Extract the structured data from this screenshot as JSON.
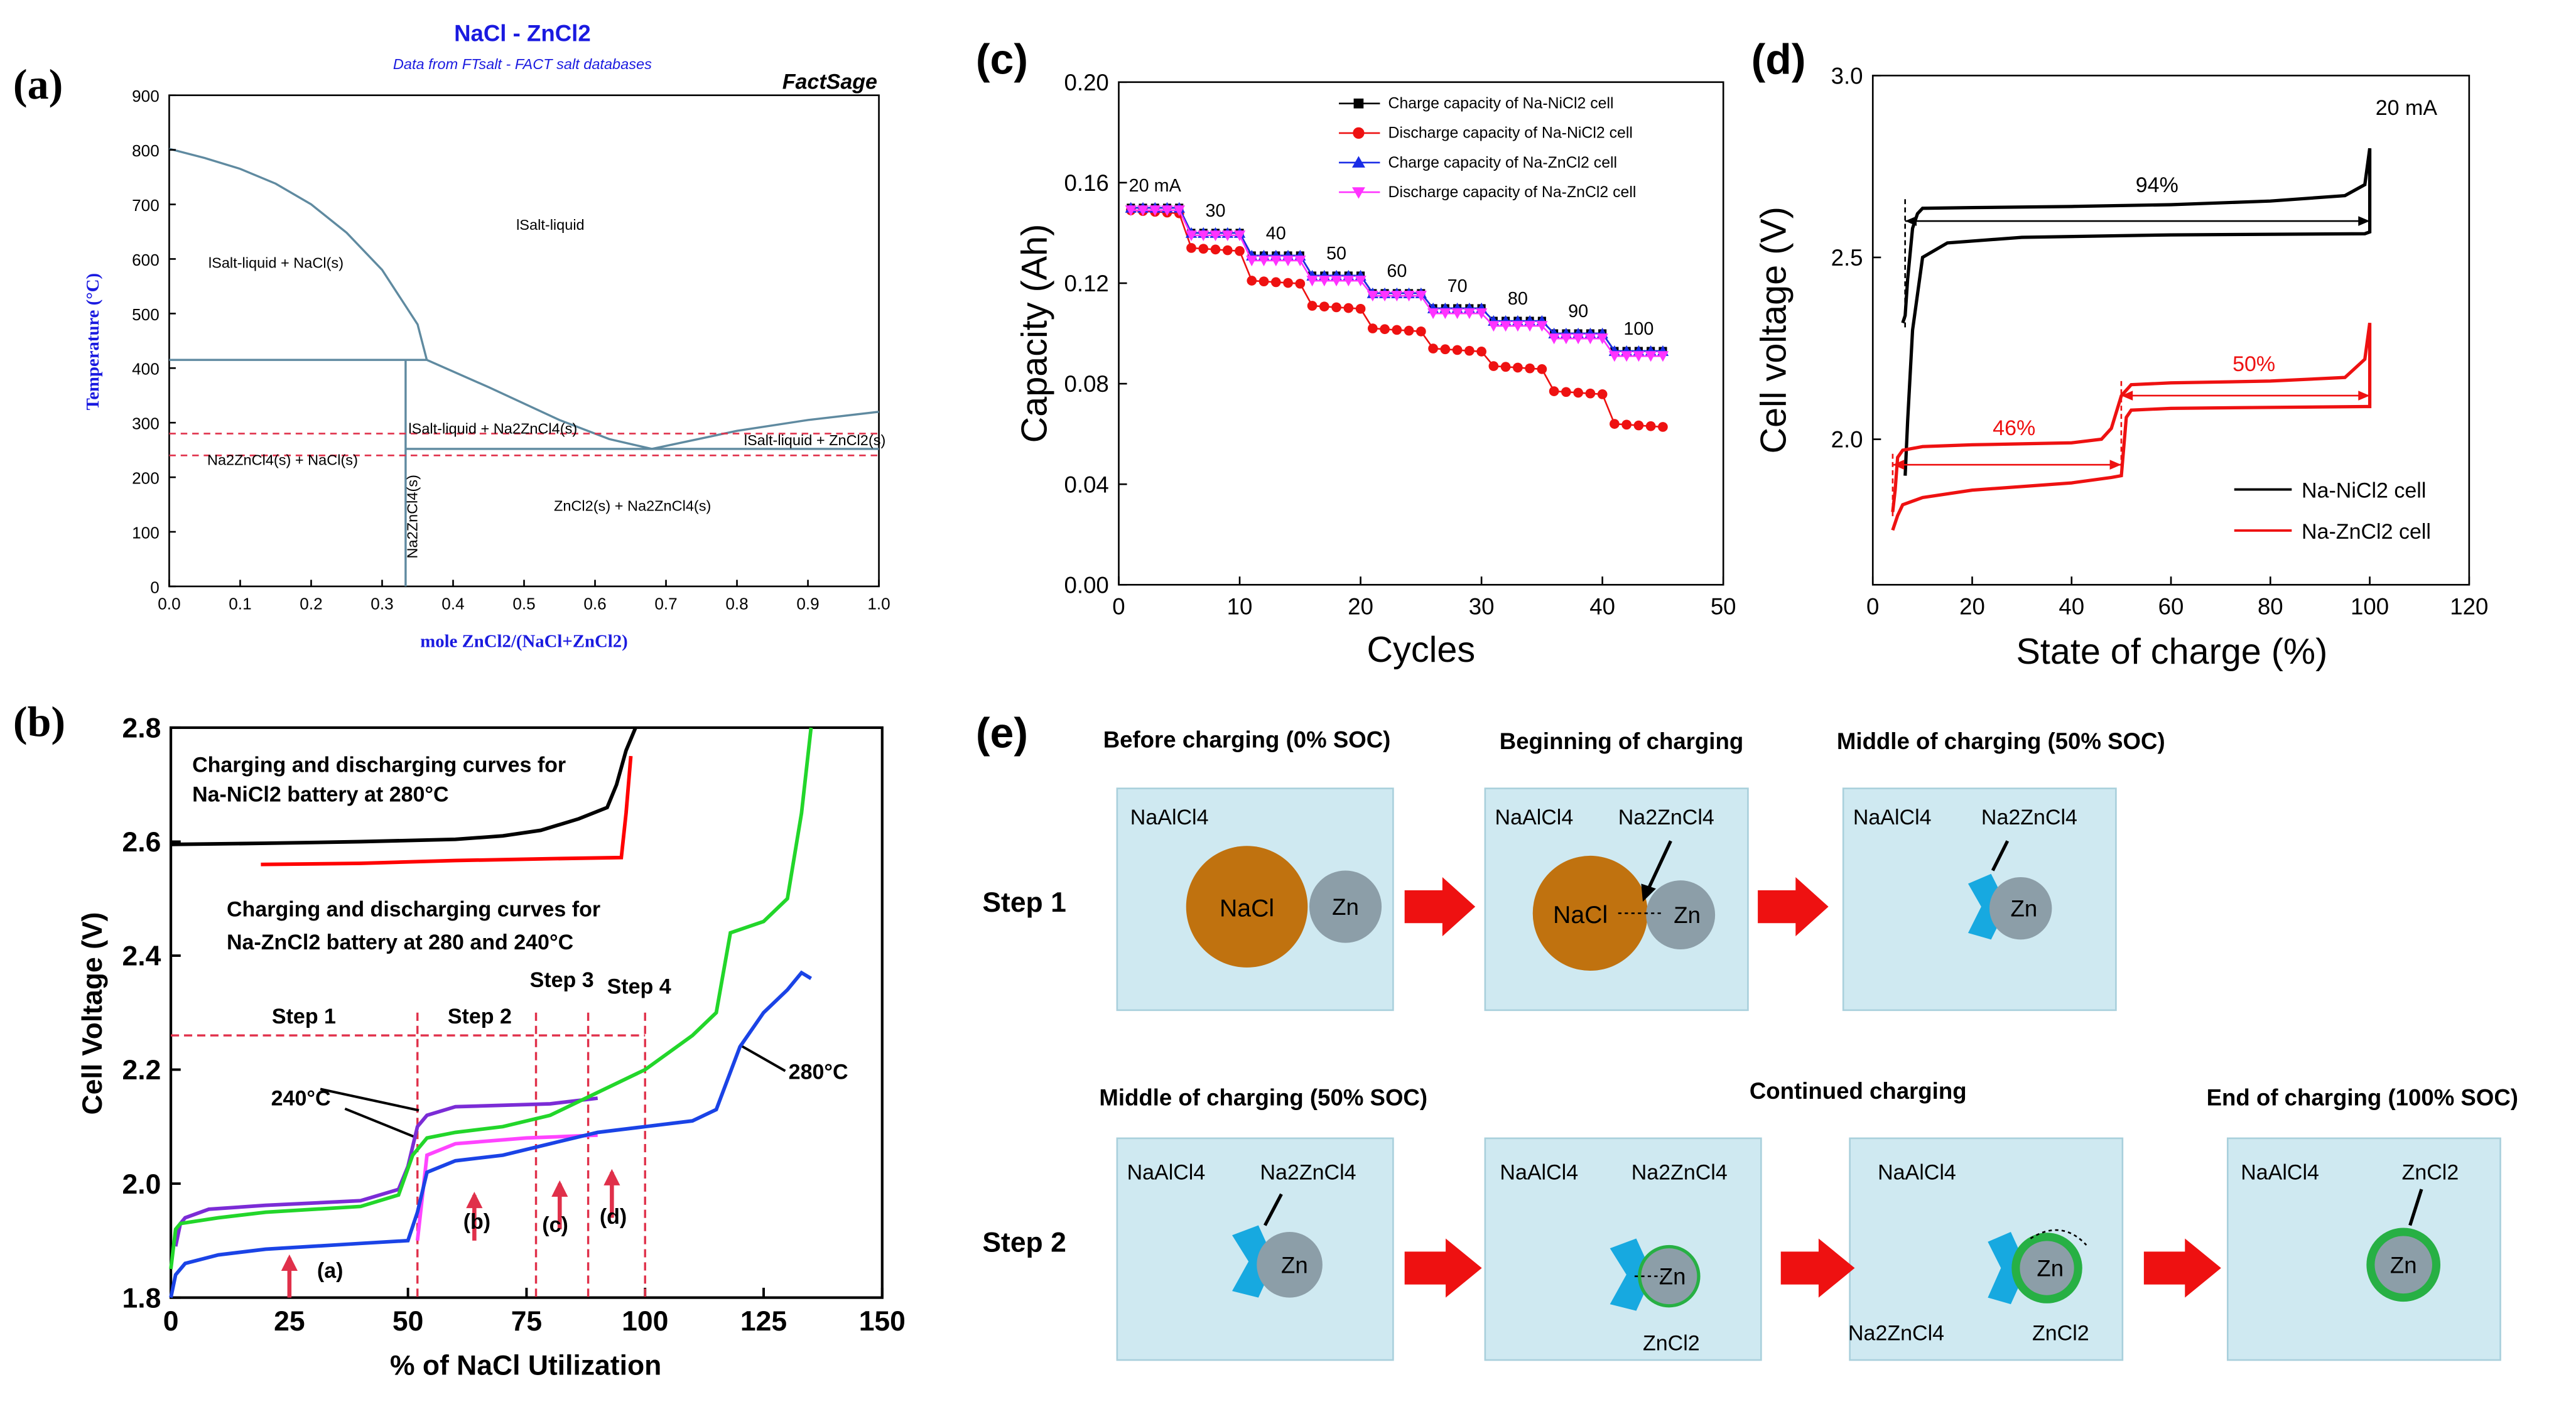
{
  "panel_labels": [
    "(a)",
    "(b)",
    "(c)",
    "(d)",
    "(e)"
  ],
  "colors": {
    "phase_line": "#5f8aa0",
    "dashed_red": "#e0304a",
    "title_blue": "#1a1ae0",
    "nacl": "#c0720f",
    "zn": "#8c9ea8",
    "nazn": "#17a9e0",
    "zncl2_ring": "#27b044",
    "arrow": "#ee1111",
    "box": "#cfe9f1"
  },
  "chart_data": [
    {
      "id": "a",
      "type": "line",
      "title": "NaCl - ZnCl2",
      "subtitle": "Data from FTsalt - FACT salt databases",
      "brand": "FactSage",
      "xlabel": "mole ZnCl2/(NaCl+ZnCl2)",
      "ylabel": "Temperature (°C)",
      "xlim": [
        0,
        1
      ],
      "ylim": [
        0,
        900
      ],
      "xticks": [
        "0.0",
        "0.1",
        "0.2",
        "0.3",
        "0.4",
        "0.5",
        "0.6",
        "0.7",
        "0.8",
        "0.9",
        "1.0"
      ],
      "yticks": [
        "0",
        "100",
        "200",
        "300",
        "400",
        "500",
        "600",
        "700",
        "800",
        "900"
      ],
      "series": [
        {
          "name": "liquidus NaCl",
          "x": [
            0,
            0.05,
            0.1,
            0.15,
            0.2,
            0.25,
            0.3,
            0.35,
            0.363
          ],
          "y": [
            802,
            785,
            765,
            738,
            700,
            648,
            580,
            480,
            415
          ]
        },
        {
          "name": "liquidus Na2ZnCl4",
          "x": [
            0.363,
            0.45,
            0.55,
            0.62,
            0.68
          ],
          "y": [
            415,
            365,
            305,
            270,
            252
          ]
        },
        {
          "name": "liquidus ZnCl2",
          "x": [
            0.68,
            0.8,
            0.9,
            1.0
          ],
          "y": [
            252,
            285,
            305,
            320
          ]
        },
        {
          "name": "peritectic",
          "x": [
            0,
            0.363
          ],
          "y": [
            415,
            415
          ]
        },
        {
          "name": "eutectic",
          "x": [
            0.333,
            1.0
          ],
          "y": [
            252,
            252
          ]
        },
        {
          "name": "compound",
          "x": [
            0.333,
            0.333
          ],
          "y": [
            0,
            415
          ]
        }
      ],
      "reference_lines": [
        280,
        240
      ],
      "regions": {
        "liquid": "lSalt-liquid",
        "liq_nacl": "lSalt-liquid + NaCl(s)",
        "liq_na2zncl4": "lSalt-liquid + Na2ZnCl4(s)",
        "liq_zncl2": "lSalt-liquid + ZnCl2(s)",
        "na2zncl4_nacl": "Na2ZnCl4(s) + NaCl(s)",
        "zncl2_na2zncl4": "ZnCl2(s) + Na2ZnCl4(s)",
        "compound": "Na2ZnCl4(s)"
      }
    },
    {
      "id": "b",
      "type": "line",
      "xlabel": "% of NaCl Utilization",
      "ylabel": "Cell Voltage (V)",
      "xlim": [
        0,
        150
      ],
      "ylim": [
        1.8,
        2.8
      ],
      "xticks": [
        "0",
        "25",
        "50",
        "75",
        "100",
        "125",
        "150"
      ],
      "yticks": [
        "1.8",
        "2.0",
        "2.2",
        "2.4",
        "2.6",
        "2.8"
      ],
      "annotations": {
        "nicl_text_1": "Charging and discharging curves for",
        "nicl_text_2": "Na-NiCl2 battery at 280°C",
        "zncl_text_1": "Charging and discharging curves for",
        "zncl_text_2": "Na-ZnCl2 battery at 280 and 240°C",
        "step1": "Step 1",
        "step2": "Step 2",
        "step3": "Step 3",
        "step4": "Step 4",
        "t240": "240°C",
        "t280": "280°C",
        "ma": "(a)",
        "mb": "(b)",
        "mc": "(c)",
        "md": "(d)"
      },
      "series": [
        {
          "name": "Na-NiCl2 charge 280C",
          "color": "#000000",
          "x": [
            0,
            20,
            40,
            60,
            70,
            78,
            86,
            92,
            94,
            96,
            98
          ],
          "y": [
            2.595,
            2.597,
            2.6,
            2.604,
            2.61,
            2.62,
            2.64,
            2.66,
            2.7,
            2.76,
            2.8
          ]
        },
        {
          "name": "Na-NiCl2 discharge 280C",
          "color": "#ff0000",
          "x": [
            19,
            40,
            60,
            80,
            95,
            96,
            97
          ],
          "y": [
            2.56,
            2.562,
            2.567,
            2.57,
            2.572,
            2.65,
            2.75
          ]
        },
        {
          "name": "Na-ZnCl2 charge 240C",
          "color": "#7b2cd6",
          "x": [
            1,
            2,
            3,
            8,
            20,
            40,
            48,
            50,
            52,
            54,
            60,
            80,
            90
          ],
          "y": [
            1.89,
            1.93,
            1.94,
            1.955,
            1.962,
            1.97,
            1.99,
            2.03,
            2.1,
            2.12,
            2.135,
            2.14,
            2.15
          ]
        },
        {
          "name": "Na-ZnCl2 discharge 240C",
          "color": "#ff44ff",
          "x": [
            52,
            54,
            60,
            75,
            90
          ],
          "y": [
            1.9,
            2.05,
            2.07,
            2.08,
            2.085
          ]
        },
        {
          "name": "Na-ZnCl2 charge 280C green",
          "color": "#22d62a",
          "x": [
            0,
            1,
            2,
            10,
            20,
            40,
            48,
            51,
            54,
            60,
            70,
            80,
            90,
            100,
            110,
            115,
            118,
            125,
            130,
            133,
            135
          ],
          "y": [
            1.85,
            1.92,
            1.93,
            1.94,
            1.95,
            1.96,
            1.98,
            2.05,
            2.08,
            2.09,
            2.1,
            2.12,
            2.16,
            2.2,
            2.26,
            2.3,
            2.44,
            2.46,
            2.5,
            2.65,
            2.8
          ]
        },
        {
          "name": "Na-ZnCl2 charge 280C blue",
          "color": "#1a43e6",
          "x": [
            0,
            1,
            3,
            10,
            20,
            40,
            50,
            52,
            54,
            60,
            70,
            80,
            90,
            100,
            110,
            115,
            120,
            125,
            130,
            133,
            135
          ],
          "y": [
            1.8,
            1.84,
            1.86,
            1.875,
            1.885,
            1.895,
            1.9,
            1.95,
            2.02,
            2.04,
            2.05,
            2.07,
            2.09,
            2.1,
            2.11,
            2.13,
            2.24,
            2.3,
            2.34,
            2.37,
            2.36
          ]
        }
      ]
    },
    {
      "id": "c",
      "type": "scatter",
      "xlabel": "Cycles",
      "ylabel": "Capacity (Ah)",
      "xlim": [
        0,
        50
      ],
      "ylim": [
        0,
        0.2
      ],
      "xticks": [
        "0",
        "10",
        "20",
        "30",
        "40",
        "50"
      ],
      "yticks": [
        "0.00",
        "0.04",
        "0.08",
        "0.12",
        "0.16",
        "0.20"
      ],
      "rate_labels": [
        "20 mA",
        "30",
        "40",
        "50",
        "60",
        "70",
        "80",
        "90",
        "100"
      ],
      "series": [
        {
          "name": "Charge capacity of Na-NiCl2 cell",
          "color": "#000000",
          "marker": "square",
          "values": [
            0.15,
            0.14,
            0.131,
            0.123,
            0.116,
            0.11,
            0.105,
            0.1,
            0.093
          ]
        },
        {
          "name": "Discharge capacity of Na-NiCl2 cell",
          "color": "#ee1111",
          "marker": "circle",
          "values": [
            0.149,
            0.134,
            0.121,
            0.111,
            0.102,
            0.094,
            0.087,
            0.077,
            0.064
          ]
        },
        {
          "name": "Charge capacity of Na-ZnCl2 cell",
          "color": "#1a2de6",
          "marker": "triangle-up",
          "values": [
            0.15,
            0.14,
            0.131,
            0.123,
            0.116,
            0.11,
            0.105,
            0.1,
            0.093
          ]
        },
        {
          "name": "Discharge capacity of Na-ZnCl2 cell",
          "color": "#ff33ff",
          "marker": "triangle-down",
          "values": [
            0.149,
            0.139,
            0.129,
            0.121,
            0.115,
            0.108,
            0.103,
            0.098,
            0.091
          ]
        }
      ]
    },
    {
      "id": "d",
      "type": "line",
      "xlabel": "State of charge (%)",
      "ylabel": "Cell voltage (V)",
      "xlim": [
        0,
        120
      ],
      "ylim": [
        1.6,
        3.0
      ],
      "xticks": [
        "0",
        "20",
        "40",
        "60",
        "80",
        "100",
        "120"
      ],
      "yticks": [
        "2.0",
        "2.5",
        "3.0"
      ],
      "current_label": "20 mA",
      "nicl_pct": "94%",
      "zncl_pct1": "46%",
      "zncl_pct2": "50%",
      "series": [
        {
          "name": "Na-NiCl2 cell",
          "color": "#000000",
          "x": [
            6,
            6.5,
            7,
            8,
            9,
            10,
            20,
            40,
            60,
            80,
            95,
            99,
            99.5,
            100,
            100,
            99,
            60,
            30,
            15,
            10,
            8,
            7,
            6.5
          ],
          "y": [
            2.32,
            2.34,
            2.44,
            2.58,
            2.62,
            2.635,
            2.637,
            2.64,
            2.645,
            2.655,
            2.67,
            2.7,
            2.75,
            2.8,
            2.57,
            2.565,
            2.562,
            2.555,
            2.54,
            2.5,
            2.3,
            2.05,
            1.9
          ]
        },
        {
          "name": "Na-ZnCl2 cell",
          "color": "#ee1111",
          "x": [
            4,
            4.5,
            5,
            6,
            8,
            10,
            20,
            40,
            46,
            48,
            50,
            52,
            60,
            80,
            95,
            99,
            100,
            100,
            99,
            60,
            52,
            51,
            50,
            48,
            40,
            20,
            10,
            6,
            5,
            4
          ],
          "y": [
            1.8,
            1.86,
            1.95,
            1.97,
            1.975,
            1.98,
            1.985,
            1.99,
            2.0,
            2.03,
            2.12,
            2.15,
            2.155,
            2.16,
            2.17,
            2.22,
            2.32,
            2.09,
            2.09,
            2.085,
            2.08,
            2.06,
            1.9,
            1.895,
            1.88,
            1.86,
            1.84,
            1.82,
            1.79,
            1.75
          ]
        }
      ]
    }
  ],
  "schematic": {
    "step1_label": "Step 1",
    "step2_label": "Step 2",
    "h_before": "Before charging (0% SOC)",
    "h_begin": "Beginning of charging",
    "h_middle1": "Middle of charging (50% SOC)",
    "h_middle2": "Middle of charging (50% SOC)",
    "h_continued": "Continued charging",
    "h_end": "End of charging (100% SOC)",
    "naalcl4": "NaAlCl4",
    "nacl": "NaCl",
    "zn": "Zn",
    "na2zncl4": "Na2ZnCl4",
    "zncl2": "ZnCl2"
  }
}
